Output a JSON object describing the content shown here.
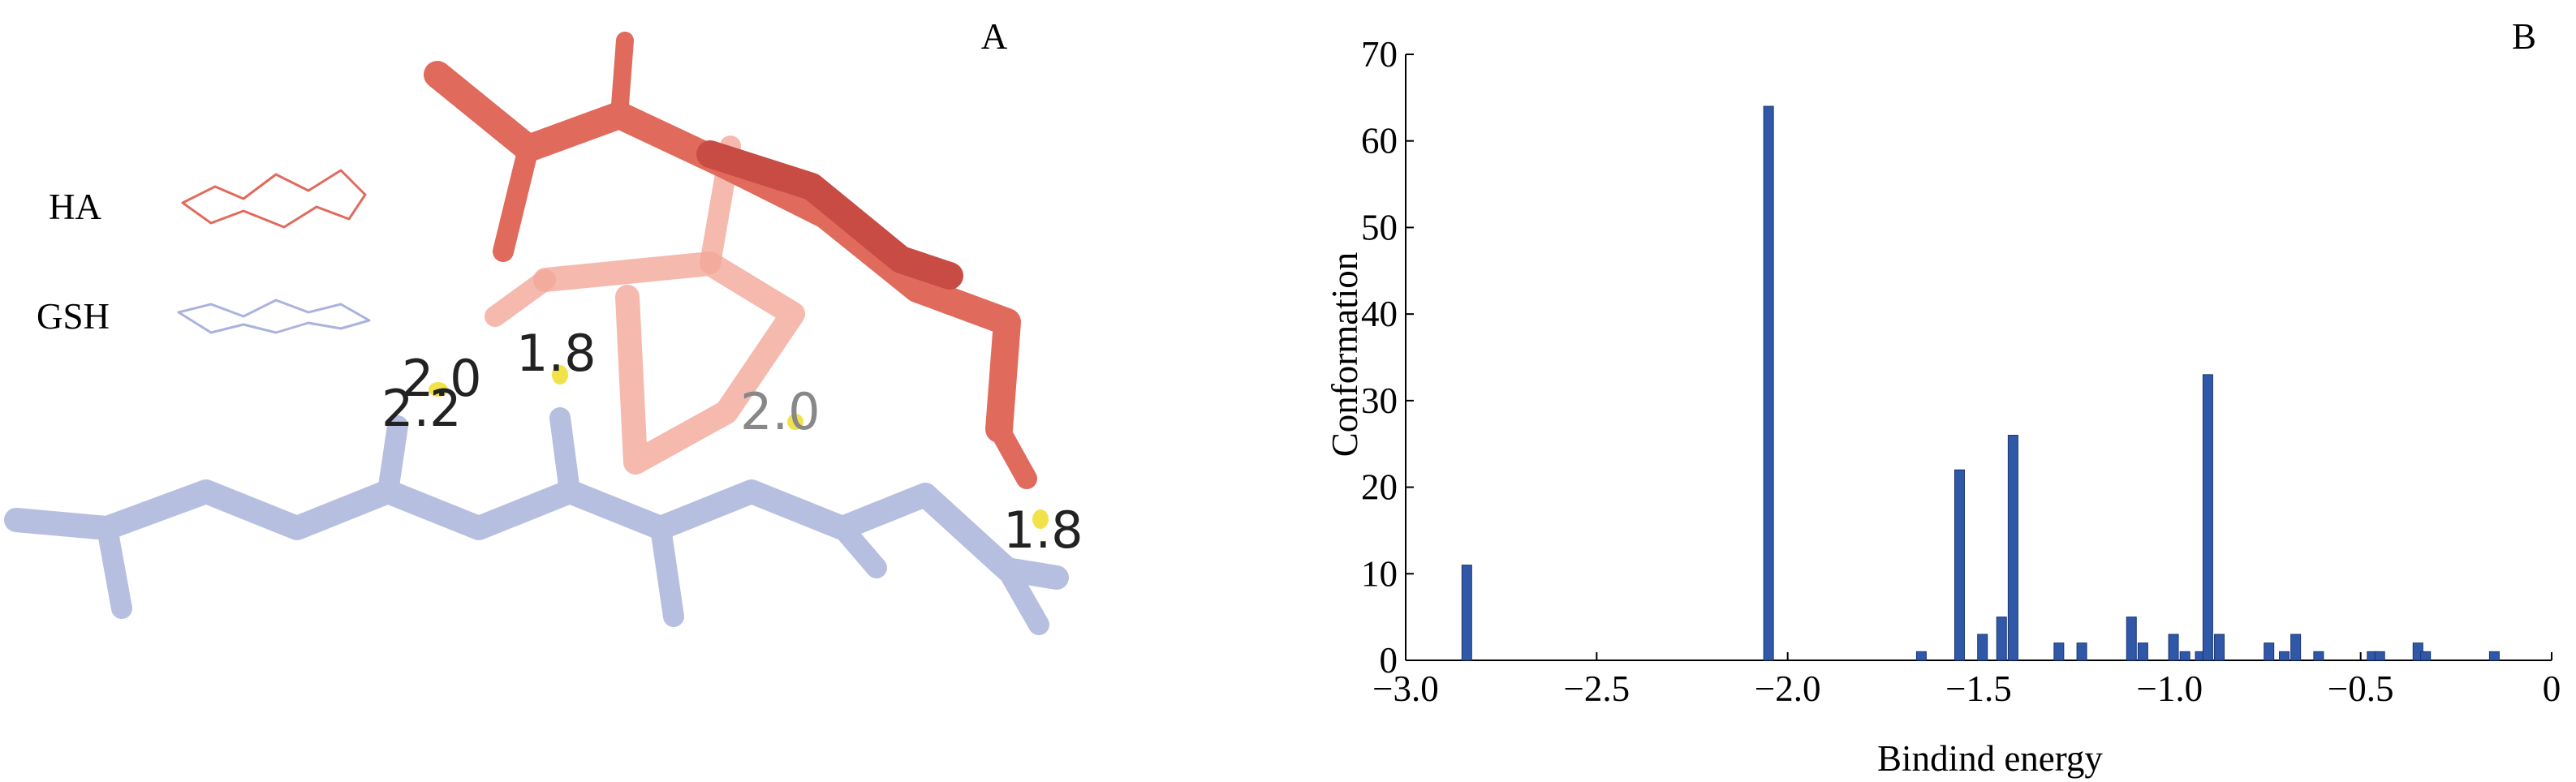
{
  "panel_a": {
    "label": "A",
    "legend": [
      "HA",
      "GSH"
    ],
    "distances": [
      "2.0",
      "1.8",
      "2.2",
      "2.0",
      "1.8"
    ]
  },
  "chart_data": {
    "type": "bar",
    "label": "B",
    "x_label": "Bindind energy",
    "y_label": "Conformation",
    "x": [
      -2.84,
      -2.05,
      -1.65,
      -1.55,
      -1.49,
      -1.44,
      -1.41,
      -1.29,
      -1.23,
      -1.1,
      -1.07,
      -0.99,
      -0.96,
      -0.92,
      -0.9,
      -0.87,
      -0.74,
      -0.7,
      -0.67,
      -0.61,
      -0.47,
      -0.45,
      -0.35,
      -0.33,
      -0.15
    ],
    "values": [
      11,
      64,
      1,
      22,
      3,
      5,
      26,
      2,
      2,
      5,
      2,
      3,
      1,
      1,
      33,
      3,
      2,
      1,
      3,
      1,
      1,
      1,
      2,
      1,
      1
    ],
    "color": "#2f58a8",
    "xlim": [
      -3,
      0
    ],
    "xticks": [
      {
        "value": -3,
        "label": "−3.0"
      },
      {
        "value": -2.5,
        "label": "−2.5"
      },
      {
        "value": -2,
        "label": "−2.0"
      },
      {
        "value": -1.5,
        "label": "−1.5"
      },
      {
        "value": -1,
        "label": "−1.0"
      },
      {
        "value": -0.5,
        "label": "−0.5"
      },
      0
    ],
    "ylim": [
      0,
      70
    ],
    "yticks": [
      0,
      10,
      20,
      30,
      40,
      50,
      60,
      70
    ]
  }
}
